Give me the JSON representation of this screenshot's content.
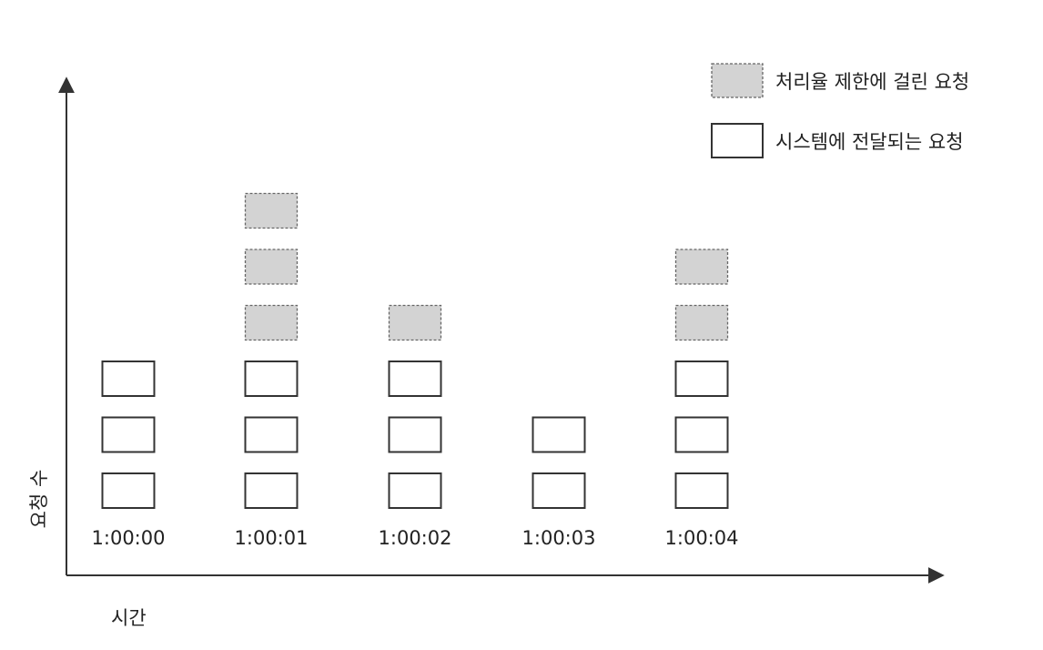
{
  "chart_data": {
    "type": "bar",
    "title": "",
    "xlabel": "시간",
    "ylabel": "요청 수",
    "categories": [
      "1:00:00",
      "1:00:01",
      "1:00:02",
      "1:00:03",
      "1:00:04"
    ],
    "ylim": [
      0,
      6
    ],
    "series": [
      {
        "name": "시스템에 전달되는 요청",
        "values": [
          3,
          3,
          3,
          2,
          3
        ],
        "color": "#ffffff"
      },
      {
        "name": "처리율 제한에 걸린 요청",
        "values": [
          0,
          3,
          1,
          0,
          2
        ],
        "color": "#d3d3d3"
      }
    ],
    "legend": "top-right",
    "grid": false
  },
  "colors": {
    "axis": "#333333",
    "box_stroke": "#333333",
    "limited_fill": "#d3d3d3",
    "passed_fill": "#ffffff"
  }
}
